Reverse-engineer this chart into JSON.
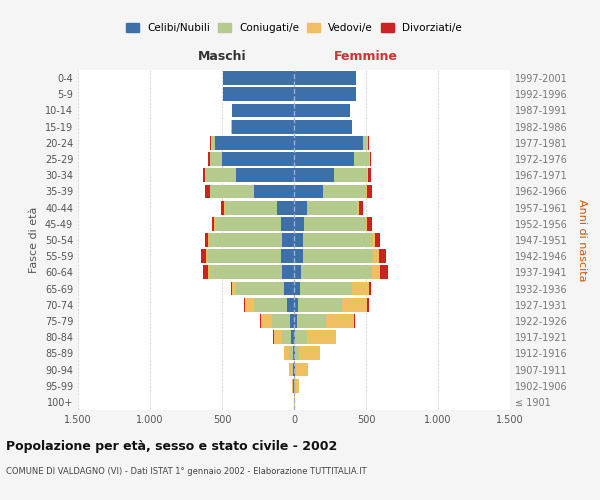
{
  "age_groups": [
    "100+",
    "95-99",
    "90-94",
    "85-89",
    "80-84",
    "75-79",
    "70-74",
    "65-69",
    "60-64",
    "55-59",
    "50-54",
    "45-49",
    "40-44",
    "35-39",
    "30-34",
    "25-29",
    "20-24",
    "15-19",
    "10-14",
    "5-9",
    "0-4"
  ],
  "birth_years": [
    "≤ 1901",
    "1902-1906",
    "1907-1911",
    "1912-1916",
    "1917-1921",
    "1922-1926",
    "1927-1931",
    "1932-1936",
    "1937-1941",
    "1942-1946",
    "1947-1951",
    "1952-1956",
    "1957-1961",
    "1962-1966",
    "1967-1971",
    "1972-1976",
    "1977-1981",
    "1982-1986",
    "1987-1991",
    "1992-1996",
    "1997-2001"
  ],
  "colors": {
    "celibi": "#3d6fa8",
    "coniugati": "#b5cb8d",
    "vedovi": "#f0c060",
    "divorziati": "#cc2222"
  },
  "maschi": {
    "celibi": [
      2,
      4,
      4,
      8,
      20,
      30,
      50,
      70,
      80,
      90,
      80,
      90,
      120,
      280,
      400,
      500,
      550,
      430,
      430,
      490,
      490
    ],
    "coniugati": [
      0,
      4,
      12,
      30,
      60,
      120,
      230,
      330,
      500,
      510,
      510,
      460,
      360,
      300,
      210,
      80,
      20,
      5,
      2,
      0,
      0
    ],
    "vedovi": [
      0,
      4,
      16,
      30,
      60,
      80,
      60,
      30,
      15,
      10,
      10,
      5,
      5,
      5,
      5,
      5,
      5,
      0,
      0,
      0,
      0
    ],
    "divorziati": [
      0,
      0,
      0,
      0,
      5,
      5,
      10,
      10,
      35,
      35,
      20,
      15,
      25,
      30,
      20,
      10,
      5,
      0,
      0,
      0,
      0
    ]
  },
  "femmine": {
    "celibi": [
      2,
      2,
      4,
      8,
      10,
      20,
      30,
      40,
      50,
      60,
      60,
      70,
      90,
      200,
      280,
      420,
      480,
      400,
      390,
      430,
      430
    ],
    "coniugati": [
      0,
      2,
      10,
      30,
      80,
      200,
      300,
      360,
      490,
      490,
      480,
      430,
      350,
      300,
      230,
      100,
      30,
      5,
      2,
      0,
      0
    ],
    "vedovi": [
      2,
      30,
      80,
      140,
      200,
      200,
      180,
      120,
      60,
      40,
      20,
      10,
      10,
      10,
      5,
      5,
      5,
      0,
      0,
      0,
      0
    ],
    "divorziati": [
      0,
      0,
      0,
      0,
      5,
      5,
      10,
      15,
      50,
      50,
      40,
      30,
      30,
      35,
      20,
      10,
      5,
      0,
      0,
      0,
      0
    ]
  },
  "xlim": 1500,
  "xticks": [
    -1500,
    -1000,
    -500,
    0,
    500,
    1000,
    1500
  ],
  "xticklabels": [
    "1.500",
    "1.000",
    "500",
    "0",
    "500",
    "1.000",
    "1.500"
  ],
  "title": "Popolazione per età, sesso e stato civile - 2002",
  "subtitle": "COMUNE DI VALDAGNO (VI) - Dati ISTAT 1° gennaio 2002 - Elaborazione TUTTITALIA.IT",
  "ylabel_left": "Fasce di età",
  "ylabel_right": "Anni di nascita",
  "label_maschi": "Maschi",
  "label_femmine": "Femmine",
  "legend_labels": [
    "Celibi/Nubili",
    "Coniugati/e",
    "Vedovi/e",
    "Divorziati/e"
  ],
  "bg_color": "#f5f5f5",
  "plot_bg": "#ffffff"
}
